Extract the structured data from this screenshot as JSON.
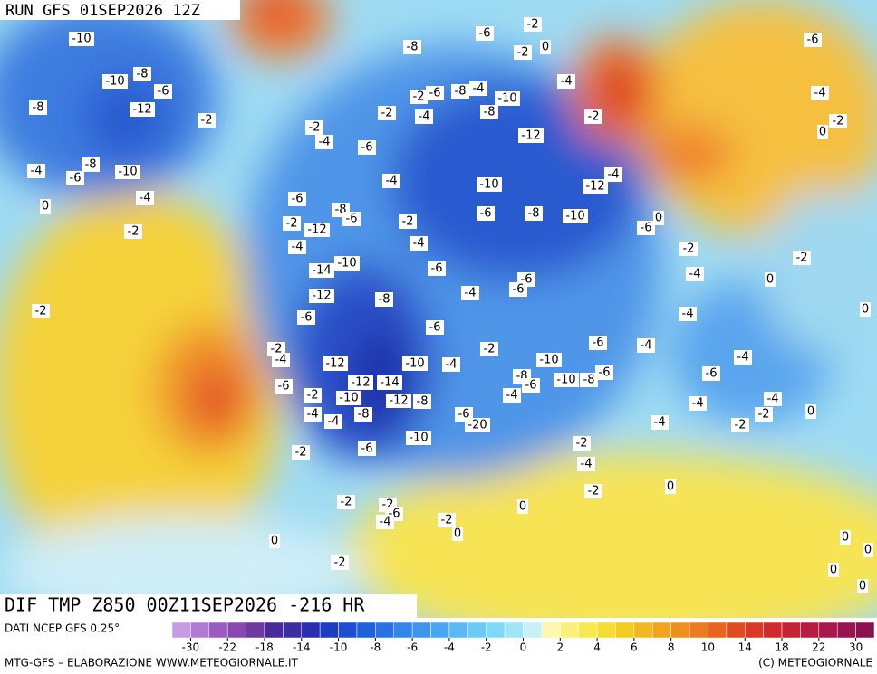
{
  "header": {
    "run": "RUN GFS 01SEP2026 12Z"
  },
  "caption": {
    "title": "DIF TMP Z850 00Z11SEP2026 -216 HR",
    "source": "DATI NCEP GFS 0.25°"
  },
  "footer": {
    "left": "MTG-GFS – ELABORAZIONE WWW.METEOGIORNALE.IT",
    "right": "(C) METEOGIORNALE"
  },
  "colorbar": {
    "labels": [
      -30,
      -22,
      -18,
      -14,
      -10,
      -8,
      -6,
      -4,
      -2,
      0,
      2,
      4,
      6,
      8,
      10,
      14,
      18,
      22,
      30
    ],
    "colors": [
      "#c89ae0",
      "#b07ad0",
      "#9a5cc0",
      "#8848b0",
      "#6e3aa0",
      "#4a2a98",
      "#3a2fa0",
      "#2a2fb0",
      "#1e3cc0",
      "#1d4fd0",
      "#2060dc",
      "#2a72e4",
      "#3584ea",
      "#3f95ee",
      "#4aa6f2",
      "#5ab8f4",
      "#6ccaf6",
      "#80d8f8",
      "#a0e4f8",
      "#c8f0f8",
      "#fdf6b0",
      "#faf07a",
      "#f8e850",
      "#f6dc30",
      "#f4cc20",
      "#f2b820",
      "#f0a420",
      "#ee9020",
      "#ec7c20",
      "#e86420",
      "#e04c22",
      "#d83a28",
      "#d02a2e",
      "#c42236",
      "#b81c40",
      "#a8184a",
      "#981450",
      "#8c1050"
    ]
  },
  "map_labels": [
    -10,
    -8,
    -6,
    -2,
    -2,
    0,
    -6,
    -8,
    -10,
    -6,
    -8,
    -12,
    -2,
    -4,
    -4,
    -2,
    -6,
    -8,
    -4,
    -10,
    -8,
    -2,
    -4,
    -2,
    -2,
    -4,
    -12,
    0,
    -2,
    -6,
    -4,
    -8,
    -6,
    -10,
    -4,
    -4,
    -10,
    -12,
    0,
    -4,
    -6,
    -8,
    -6,
    -6,
    -8,
    -10,
    -2,
    -12,
    -2,
    0,
    -6,
    -2,
    -4,
    -4,
    -2,
    -2,
    -14,
    -10,
    -6,
    -4,
    0,
    -6,
    -6,
    -4,
    -12,
    -8,
    -2,
    -6,
    0,
    -4,
    -6,
    -6,
    -4,
    -2,
    -4,
    -2,
    -10,
    -4,
    -12,
    -10,
    -4,
    -12,
    -14,
    -6,
    -8,
    -6,
    -10,
    -8,
    -6,
    -6,
    -2,
    -10,
    -12,
    -8,
    -4,
    -4,
    -4,
    -2,
    0,
    -4,
    -4,
    -8,
    -6,
    -20,
    -4,
    -2,
    -2,
    -6,
    -10,
    -2,
    -4,
    -2,
    0,
    -2,
    -2,
    -6,
    -4,
    0,
    -2,
    0,
    0,
    0,
    0,
    -2,
    0,
    0
  ]
}
